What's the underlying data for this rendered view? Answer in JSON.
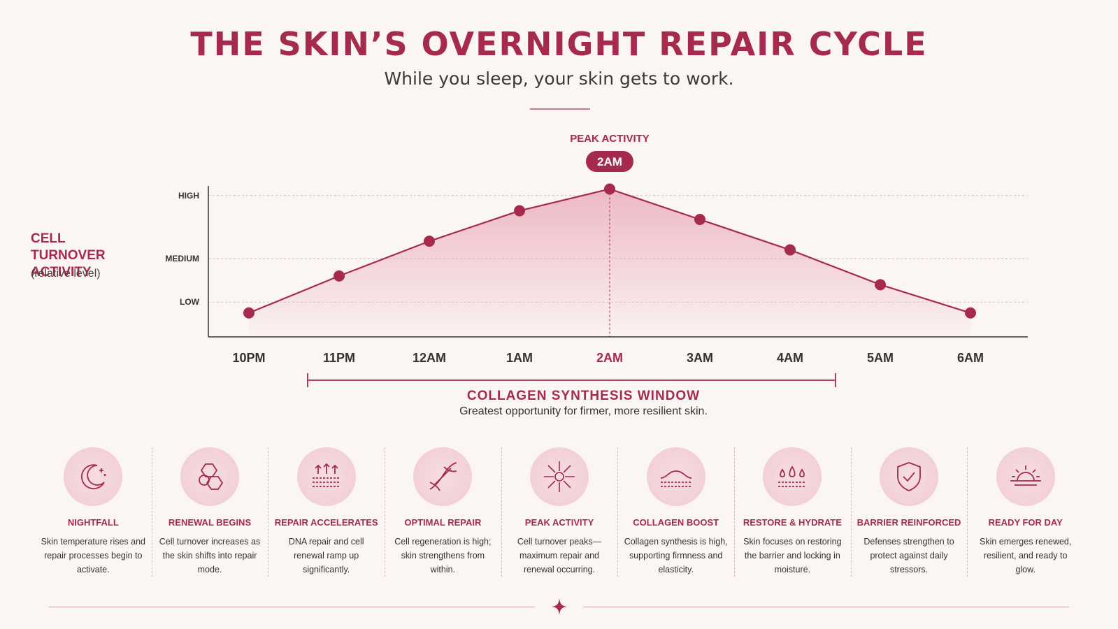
{
  "header": {
    "title": "THE SKIN’S OVERNIGHT REPAIR CYCLE",
    "subtitle": "While you sleep, your skin gets to work."
  },
  "chart_data": {
    "type": "line",
    "ylabel": "CELL TURNOVER ACTIVITY",
    "ylabel_note": "(relative level)",
    "y_ticks": [
      "LOW",
      "MEDIUM",
      "HIGH"
    ],
    "ylim": [
      0.6,
      4.2
    ],
    "categories": [
      "10PM",
      "11PM",
      "12AM",
      "1AM",
      "2AM",
      "3AM",
      "4AM",
      "5AM",
      "6AM"
    ],
    "values": [
      1.15,
      2.0,
      2.8,
      3.5,
      4.0,
      3.3,
      2.6,
      1.8,
      1.15
    ],
    "grid": "horizontal-dashed",
    "peak": {
      "label": "PEAK ACTIVITY",
      "category": "2AM"
    },
    "window": {
      "from": "11PM",
      "to": "4AM",
      "title": "COLLAGEN SYNTHESIS WINDOW",
      "note": "Greatest opportunity for firmer, more resilient skin."
    },
    "colors": {
      "accent": "#a52a4c",
      "fill": "#e8a4b4"
    }
  },
  "stages": [
    {
      "icon": "moon-icon",
      "title": "NIGHTFALL",
      "desc": "Skin temperature rises and repair processes begin to activate."
    },
    {
      "icon": "cells-icon",
      "title": "RENEWAL BEGINS",
      "desc": "Cell turnover increases as the skin shifts into repair mode."
    },
    {
      "icon": "layers-up-icon",
      "title": "REPAIR ACCELERATES",
      "desc": "DNA repair and cell renewal ramp up significantly."
    },
    {
      "icon": "dna-icon",
      "title": "OPTIMAL REPAIR",
      "desc": "Cell regeneration is high; skin strengthens from within."
    },
    {
      "icon": "burst-icon",
      "title": "PEAK ACTIVITY",
      "desc": "Cell turnover peaks—maximum repair and renewal occurring."
    },
    {
      "icon": "skin-wave-icon",
      "title": "COLLAGEN BOOST",
      "desc": "Collagen synthesis is high, supporting firmness and elasticity."
    },
    {
      "icon": "droplets-icon",
      "title": "RESTORE & HYDRATE",
      "desc": "Skin focuses on restoring the barrier and locking in moisture."
    },
    {
      "icon": "shield-icon",
      "title": "BARRIER REINFORCED",
      "desc": "Defenses strengthen to protect against daily stressors."
    },
    {
      "icon": "sunrise-icon",
      "title": "READY FOR DAY",
      "desc": "Skin emerges renewed, resilient, and ready to glow."
    }
  ]
}
